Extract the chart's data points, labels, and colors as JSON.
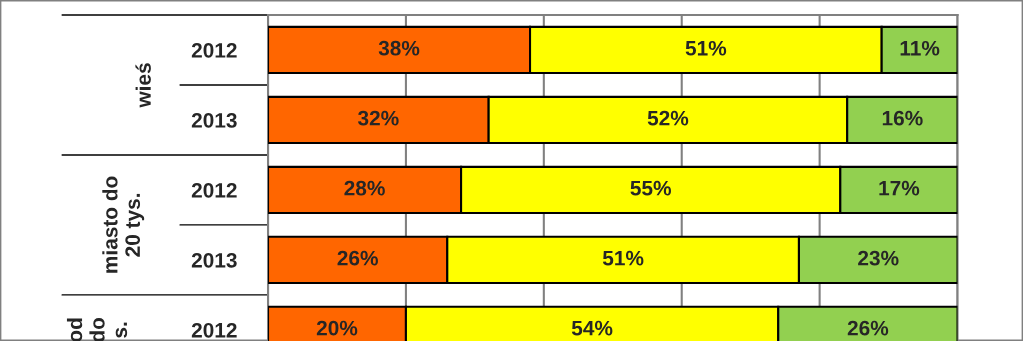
{
  "chart_data": {
    "type": "bar",
    "orientation": "horizontal",
    "stacked": true,
    "categories": [
      "2012",
      "2013",
      "2012",
      "2013",
      "2012"
    ],
    "series": [
      {
        "color": "#ff6600",
        "values": [
          38,
          32,
          28,
          26,
          20
        ],
        "value_labels": [
          "38%",
          "32%",
          "28%",
          "26%",
          "20%"
        ]
      },
      {
        "color": "#ffff00",
        "values": [
          51,
          52,
          55,
          51,
          54
        ],
        "value_labels": [
          "51%",
          "52%",
          "55%",
          "51%",
          "54%"
        ]
      },
      {
        "color": "#92d050",
        "values": [
          11,
          16,
          17,
          23,
          26
        ],
        "value_labels": [
          "11%",
          "16%",
          "17%",
          "23%",
          "26%"
        ]
      }
    ],
    "xlim": [
      0,
      100
    ],
    "xticks": [
      {
        "value": 0,
        "label": null
      },
      {
        "value": 20,
        "label": null
      },
      {
        "value": 40,
        "label": null
      },
      {
        "value": 60,
        "label": null
      },
      {
        "value": 80,
        "label": null
      },
      {
        "value": 100,
        "label": null
      }
    ],
    "tick_labels": "y",
    "grid": "x",
    "legend": false,
    "annotations": [
      "wieś",
      "miasto do\n20 tys.",
      "od\ndo\ns."
    ]
  }
}
